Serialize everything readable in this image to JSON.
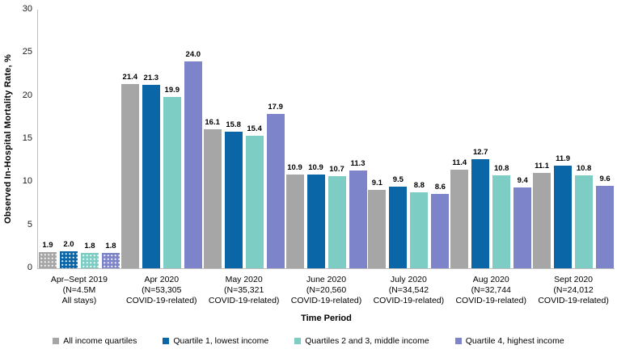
{
  "chart_data": {
    "type": "bar",
    "title": "",
    "xlabel": "Time Period",
    "ylabel": "Observed In-Hospital Mortality Rate, %",
    "ylim": [
      0,
      30
    ],
    "ytick_step": 5,
    "grid": false,
    "legend_position": "bottom",
    "categories": [
      [
        "Apr–Sept 2019",
        "(N=4.5M",
        "All stays)"
      ],
      [
        "Apr 2020",
        "(N=53,305",
        "COVID-19-related)"
      ],
      [
        "May 2020",
        "(N=35,321",
        "COVID-19-related)"
      ],
      [
        "June 2020",
        "(N=20,560",
        "COVID-19-related)"
      ],
      [
        "July 2020",
        "(N=34,542",
        "COVID-19-related)"
      ],
      [
        "Aug 2020",
        "(N=32,744",
        "COVID-19-related)"
      ],
      [
        "Sept 2020",
        "(N=24,012",
        "COVID-19-related)"
      ]
    ],
    "series": [
      {
        "name": "All income quartiles",
        "color": "#a6a6a6",
        "values": [
          1.9,
          21.4,
          16.1,
          10.9,
          9.1,
          11.4,
          11.1
        ]
      },
      {
        "name": "Quartile 1, lowest income",
        "color": "#0b66a8",
        "values": [
          2.0,
          21.3,
          15.8,
          10.9,
          9.5,
          12.7,
          11.9
        ]
      },
      {
        "name": "Quartiles 2 and 3, middle income",
        "color": "#7ecdc5",
        "values": [
          1.8,
          19.9,
          15.4,
          10.7,
          8.8,
          10.8,
          10.8
        ]
      },
      {
        "name": "Quartile 4, highest income",
        "color": "#7e84c9",
        "values": [
          1.8,
          24.0,
          17.9,
          11.3,
          8.6,
          9.4,
          9.6
        ]
      }
    ],
    "patterned_category_index": 0,
    "axis_line_color": "#bfbfbf"
  }
}
